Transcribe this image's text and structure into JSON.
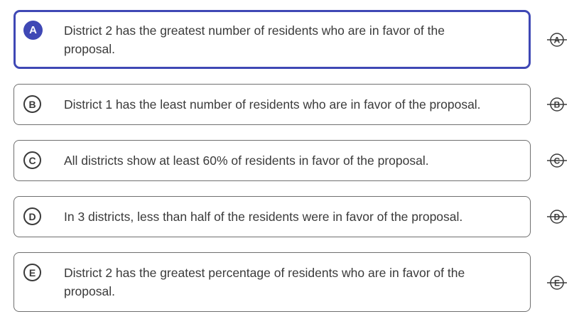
{
  "options": [
    {
      "letter": "A",
      "text_line1": "District 2 has the greatest number of residents who are in favor of the",
      "text_line2": "proposal.",
      "selected": true,
      "strike_icon": "strikethrough-a-icon"
    },
    {
      "letter": "B",
      "text_line1": "District 1 has the least number of residents who are in favor of the proposal.",
      "text_line2": "",
      "selected": false,
      "strike_icon": "strikethrough-b-icon"
    },
    {
      "letter": "C",
      "text_line1": "All districts show at least 60% of residents in favor of the proposal.",
      "text_line2": "",
      "selected": false,
      "strike_icon": "strikethrough-c-icon"
    },
    {
      "letter": "D",
      "text_line1": "In 3 districts, less than half of the residents were in favor of the proposal.",
      "text_line2": "",
      "selected": false,
      "strike_icon": "strikethrough-d-icon"
    },
    {
      "letter": "E",
      "text_line1": "District 2 has the greatest percentage of residents who are in favor of the",
      "text_line2": "proposal.",
      "selected": false,
      "strike_icon": "strikethrough-e-icon"
    }
  ],
  "colors": {
    "accent": "#3f48b5",
    "border": "#6f6f6f",
    "text": "#3a3a3a"
  }
}
